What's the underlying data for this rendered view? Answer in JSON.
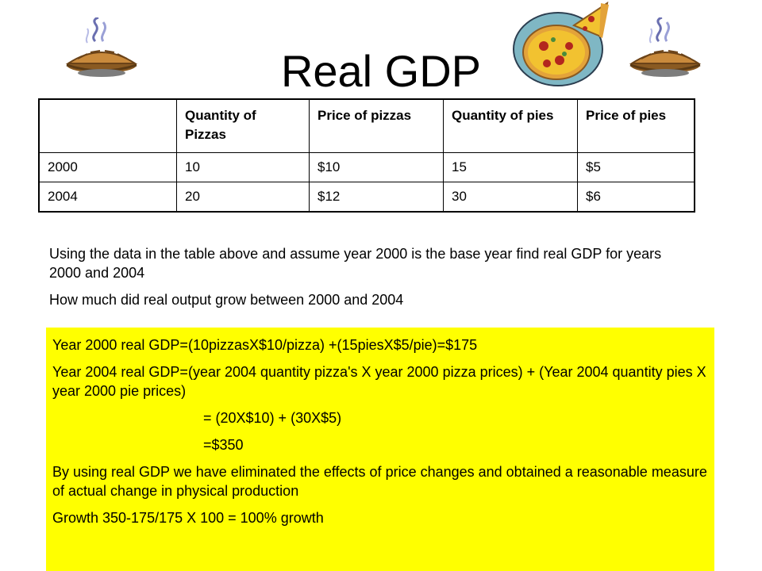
{
  "slide": {
    "title": "Real GDP"
  },
  "images": {
    "left": "pie-clipart",
    "center": "pizza-clipart",
    "right": "pie-clipart"
  },
  "table": {
    "headers": [
      "",
      "Quantity of Pizzas",
      "Price of pizzas",
      "Quantity of pies",
      "Price of pies"
    ],
    "rows": [
      [
        "2000",
        "10",
        "$10",
        "15",
        "$5"
      ],
      [
        "2004",
        "20",
        "$12",
        "30",
        "$6"
      ]
    ]
  },
  "question": {
    "line1": "Using the data in the table above and assume year 2000 is the base year find real GDP for years 2000 and 2004",
    "line2": "How much did real output grow between 2000 and 2004"
  },
  "answer": {
    "line1": "Year 2000 real GDP=(10pizzasX$10/pizza)  +(15piesX$5/pie)=$175",
    "line2": "Year 2004 real GDP=(year 2004 quantity pizza's X year 2000 pizza prices) + (Year 2004 quantity pies X year 2000 pie prices)",
    "line3": "= (20X$10) + (30X$5)",
    "line4": "=$350",
    "line5": "By using real GDP we have eliminated the effects of price changes and obtained a reasonable measure of actual change in physical production",
    "line6": "Growth 350-175/175 X 100 = 100% growth"
  },
  "colors": {
    "answer_background": "#ffff00",
    "pie_crust": "#c98a3c",
    "pizza_plate": "#7fb7c4",
    "pizza_cheese": "#f2c230",
    "pepperoni": "#b3261e"
  }
}
